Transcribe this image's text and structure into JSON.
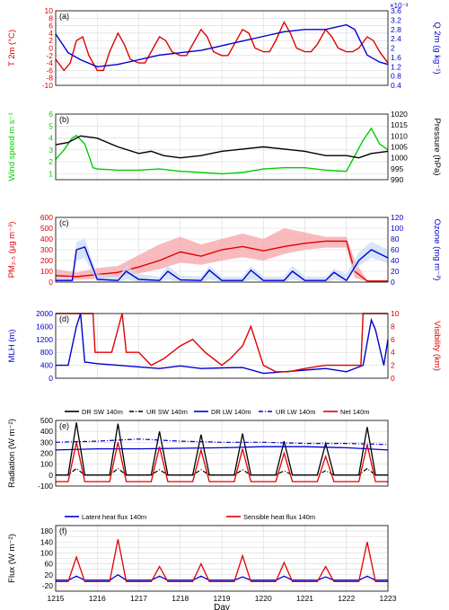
{
  "figure": {
    "xlabel": "Day",
    "x_ticks": [
      1215,
      1216,
      1217,
      1218,
      1219,
      1220,
      1221,
      1222,
      1223
    ],
    "xlim": [
      1215,
      1223
    ]
  },
  "chart_data": [
    {
      "panel": "(a)",
      "type": "line",
      "grid": true,
      "left_axis": {
        "label": "T 2m (°C)",
        "ylim": [
          -10,
          10
        ],
        "ticks": [
          -10,
          -8,
          -6,
          -4,
          -2,
          0,
          2,
          4,
          6,
          8,
          10
        ],
        "color": "#e00000"
      },
      "right_axis": {
        "label": "Q 2m (g kg⁻¹)",
        "ylim": [
          0.0004,
          0.0036
        ],
        "ticks": [
          "0.4",
          "0.8",
          "1.2",
          "1.6",
          "2",
          "2.4",
          "2.8",
          "3.2",
          "3.6"
        ],
        "multiplier": "×10⁻³",
        "color": "#0000d0"
      },
      "series": [
        {
          "axis": "left",
          "color": "#e00000",
          "x": [
            1215.0,
            1215.2,
            1215.35,
            1215.5,
            1215.65,
            1215.8,
            1216.0,
            1216.15,
            1216.3,
            1216.5,
            1216.65,
            1216.8,
            1217.0,
            1217.15,
            1217.3,
            1217.5,
            1217.65,
            1217.8,
            1218.0,
            1218.15,
            1218.3,
            1218.5,
            1218.65,
            1218.8,
            1219.0,
            1219.15,
            1219.3,
            1219.5,
            1219.65,
            1219.8,
            1220.0,
            1220.15,
            1220.3,
            1220.5,
            1220.65,
            1220.8,
            1221.0,
            1221.15,
            1221.3,
            1221.5,
            1221.65,
            1221.8,
            1222.0,
            1222.15,
            1222.3,
            1222.5,
            1222.65,
            1222.8,
            1223.0
          ],
          "y": [
            -3,
            -6,
            -4,
            2,
            3,
            -2,
            -6,
            -6,
            -1,
            4,
            1,
            -3,
            -4,
            -4,
            -1,
            3,
            2,
            -1,
            -2,
            -2,
            1,
            5,
            3,
            -1,
            -2,
            -2,
            1,
            5,
            4,
            0,
            -1,
            -1,
            2,
            7,
            4,
            0,
            -1,
            -1,
            1,
            5,
            3,
            0,
            -1,
            -1,
            0,
            3,
            2,
            -1,
            -4
          ]
        },
        {
          "axis": "right",
          "color": "#0000d0",
          "x": [
            1215.0,
            1215.3,
            1215.6,
            1216.0,
            1216.5,
            1217.0,
            1217.5,
            1218.0,
            1218.5,
            1219.0,
            1219.5,
            1220.0,
            1220.5,
            1221.0,
            1221.5,
            1222.0,
            1222.2,
            1222.5,
            1222.8,
            1223.0
          ],
          "y": [
            0.0026,
            0.0018,
            0.0015,
            0.0012,
            0.0013,
            0.0015,
            0.0017,
            0.0018,
            0.0019,
            0.0021,
            0.0023,
            0.0025,
            0.0027,
            0.0028,
            0.0028,
            0.003,
            0.0028,
            0.0017,
            0.0014,
            0.0013
          ]
        }
      ]
    },
    {
      "panel": "(b)",
      "type": "line",
      "grid": true,
      "left_axis": {
        "label": "Wind speed m s⁻¹",
        "ylim": [
          0.5,
          6
        ],
        "ticks": [
          1,
          2,
          3,
          4,
          5,
          6
        ],
        "color": "#00cc00"
      },
      "right_axis": {
        "label": "Pressure (hPa)",
        "ylim": [
          990,
          1020
        ],
        "ticks": [
          990,
          995,
          1000,
          1005,
          1010,
          1015,
          1020
        ],
        "color": "#000000"
      },
      "series": [
        {
          "axis": "left",
          "color": "#00cc00",
          "x": [
            1215.0,
            1215.2,
            1215.4,
            1215.5,
            1215.7,
            1215.9,
            1216.0,
            1216.5,
            1217.0,
            1217.5,
            1218.0,
            1218.5,
            1219.0,
            1219.5,
            1220.0,
            1220.5,
            1221.0,
            1221.5,
            1222.0,
            1222.2,
            1222.4,
            1222.6,
            1222.8,
            1223.0
          ],
          "y": [
            2.2,
            3.0,
            4.0,
            4.2,
            3.5,
            1.5,
            1.4,
            1.3,
            1.3,
            1.4,
            1.2,
            1.1,
            1.0,
            1.1,
            1.4,
            1.5,
            1.5,
            1.3,
            1.2,
            2.5,
            3.8,
            4.8,
            3.5,
            3.0
          ]
        },
        {
          "axis": "right",
          "color": "#000000",
          "x": [
            1215.0,
            1215.3,
            1215.6,
            1216.0,
            1216.5,
            1217.0,
            1217.3,
            1217.6,
            1218.0,
            1218.5,
            1219.0,
            1219.5,
            1220.0,
            1220.5,
            1221.0,
            1221.5,
            1222.0,
            1222.3,
            1222.6,
            1223.0
          ],
          "y": [
            1006,
            1007,
            1010,
            1009,
            1005,
            1002,
            1003,
            1001,
            1000,
            1001,
            1003,
            1004,
            1005,
            1004,
            1003,
            1001,
            1001,
            1000,
            1002,
            1003
          ]
        }
      ]
    },
    {
      "panel": "(c)",
      "type": "line",
      "grid": true,
      "left_axis": {
        "label": "PM₂.₅ (μg m⁻³)",
        "ylim": [
          0,
          600
        ],
        "ticks": [
          0,
          100,
          200,
          300,
          400,
          500,
          600
        ],
        "color": "#e00000"
      },
      "right_axis": {
        "label": "Ozone (mg m⁻³)",
        "ylim": [
          0,
          120
        ],
        "ticks": [
          0,
          20,
          40,
          60,
          80,
          100,
          120
        ],
        "color": "#0000d0"
      },
      "series": [
        {
          "axis": "left",
          "color": "#e00000",
          "x": [
            1215.0,
            1215.5,
            1216.0,
            1216.5,
            1217.0,
            1217.5,
            1218.0,
            1218.5,
            1219.0,
            1219.5,
            1220.0,
            1220.5,
            1221.0,
            1221.5,
            1222.0,
            1222.2,
            1222.5,
            1223.0
          ],
          "y": [
            60,
            50,
            70,
            90,
            140,
            200,
            280,
            240,
            300,
            330,
            290,
            330,
            360,
            380,
            380,
            100,
            10,
            10
          ],
          "band_lower": [
            20,
            20,
            30,
            50,
            80,
            120,
            180,
            160,
            200,
            230,
            200,
            260,
            300,
            320,
            320,
            40,
            5,
            5
          ],
          "band_upper": [
            120,
            90,
            130,
            150,
            250,
            350,
            420,
            350,
            400,
            450,
            400,
            500,
            460,
            420,
            420,
            200,
            15,
            15
          ]
        },
        {
          "axis": "right",
          "color": "#0000d0",
          "x": [
            1215.0,
            1215.4,
            1215.5,
            1215.7,
            1216.0,
            1216.5,
            1216.7,
            1217.0,
            1217.5,
            1217.7,
            1218.0,
            1218.5,
            1218.7,
            1219.0,
            1219.5,
            1219.7,
            1220.0,
            1220.5,
            1220.7,
            1221.0,
            1221.5,
            1221.7,
            1222.0,
            1222.3,
            1222.6,
            1223.0
          ],
          "y": [
            3,
            3,
            60,
            65,
            5,
            3,
            20,
            5,
            3,
            20,
            4,
            3,
            22,
            3,
            3,
            22,
            3,
            3,
            20,
            3,
            3,
            18,
            3,
            40,
            60,
            45
          ],
          "band_lower": [
            0,
            0,
            40,
            45,
            0,
            0,
            5,
            0,
            0,
            5,
            0,
            0,
            5,
            0,
            0,
            5,
            0,
            0,
            5,
            0,
            0,
            5,
            0,
            30,
            45,
            35
          ],
          "band_upper": [
            10,
            10,
            75,
            80,
            15,
            10,
            30,
            15,
            10,
            30,
            12,
            10,
            30,
            10,
            10,
            30,
            10,
            10,
            30,
            10,
            10,
            25,
            15,
            55,
            75,
            60
          ]
        }
      ]
    },
    {
      "panel": "(d)",
      "type": "line",
      "grid": true,
      "left_axis": {
        "label": "MLH (m)",
        "ylim": [
          0,
          2000
        ],
        "ticks": [
          0,
          400,
          800,
          1200,
          1600,
          2000
        ],
        "color": "#0000d0"
      },
      "right_axis": {
        "label": "Visibility (km)",
        "ylim": [
          0,
          10
        ],
        "ticks": [
          0,
          2,
          4,
          6,
          8,
          10
        ],
        "color": "#e00000"
      },
      "series": [
        {
          "axis": "left",
          "color": "#0000d0",
          "x": [
            1215.0,
            1215.3,
            1215.5,
            1215.6,
            1215.7,
            1216.0,
            1216.5,
            1217.0,
            1217.5,
            1218.0,
            1218.5,
            1219.0,
            1219.5,
            1220.0,
            1220.5,
            1221.0,
            1221.5,
            1222.0,
            1222.4,
            1222.6,
            1222.7,
            1222.9,
            1223.0
          ],
          "y": [
            400,
            400,
            1600,
            2000,
            500,
            450,
            400,
            350,
            300,
            380,
            300,
            320,
            330,
            150,
            200,
            250,
            300,
            200,
            400,
            1800,
            1500,
            400,
            1200
          ]
        },
        {
          "axis": "right",
          "color": "#e00000",
          "x": [
            1215.0,
            1215.9,
            1215.95,
            1216.3,
            1216.35,
            1216.6,
            1216.7,
            1217.0,
            1217.3,
            1217.6,
            1218.0,
            1218.3,
            1218.6,
            1219.0,
            1219.2,
            1219.5,
            1219.7,
            1220.0,
            1220.3,
            1220.6,
            1221.0,
            1221.5,
            1222.0,
            1222.35,
            1222.4,
            1223.0
          ],
          "y": [
            10,
            10,
            4,
            4,
            4,
            10,
            4,
            4,
            2,
            3,
            5,
            6,
            4,
            2,
            3,
            5,
            8,
            2,
            1,
            1,
            1.5,
            2,
            2,
            2,
            10,
            10
          ]
        }
      ]
    },
    {
      "panel": "(e)",
      "type": "line",
      "grid": true,
      "left_axis": {
        "label": "Radiation (W m⁻²)",
        "ylim": [
          -100,
          500
        ],
        "ticks": [
          -100,
          0,
          100,
          200,
          300,
          400,
          500
        ]
      },
      "legend": [
        {
          "name": "DR SW 140m",
          "color": "#000000",
          "dash": "solid"
        },
        {
          "name": "UR SW 140m",
          "color": "#000000",
          "dash": "dashdot"
        },
        {
          "name": "DR LW 140m",
          "color": "#0000d0",
          "dash": "solid"
        },
        {
          "name": "UR LW 140m",
          "color": "#0000d0",
          "dash": "dashdot"
        },
        {
          "name": "Net 140m",
          "color": "#e00000",
          "dash": "solid"
        }
      ],
      "day_peaks": {
        "x": [
          1215.5,
          1216.5,
          1217.5,
          1218.5,
          1219.5,
          1220.5,
          1221.5,
          1222.5
        ],
        "DR_SW_140m": [
          480,
          470,
          400,
          370,
          380,
          310,
          290,
          440
        ],
        "UR_SW_140m": [
          60,
          60,
          50,
          50,
          50,
          40,
          40,
          60
        ],
        "Net_140m": [
          300,
          300,
          260,
          230,
          240,
          200,
          170,
          280
        ]
      },
      "night": {
        "DR_SW_140m": 0,
        "UR_SW_140m": 0,
        "Net_140m": -60
      },
      "DR_LW_140m": {
        "x": [
          1215.0,
          1216.0,
          1217.0,
          1218.0,
          1219.0,
          1220.0,
          1221.0,
          1222.0,
          1223.0
        ],
        "y": [
          230,
          240,
          240,
          245,
          250,
          260,
          260,
          250,
          230
        ]
      },
      "UR_LW_140m": {
        "x": [
          1215.0,
          1216.0,
          1217.0,
          1218.0,
          1219.0,
          1220.0,
          1221.0,
          1222.0,
          1223.0
        ],
        "y": [
          300,
          310,
          330,
          310,
          300,
          300,
          290,
          290,
          280
        ]
      }
    },
    {
      "panel": "(f)",
      "type": "line",
      "grid": true,
      "left_axis": {
        "label": "Flux (W m⁻²)",
        "ylim": [
          -40,
          200
        ],
        "ticks": [
          -40,
          -20,
          0,
          20,
          40,
          60,
          80,
          100,
          120,
          140,
          160,
          180,
          200
        ],
        "tick_labels": [
          "",
          "-20",
          "",
          "20",
          "",
          "60",
          "",
          "100",
          "",
          "140",
          "",
          "180",
          ""
        ]
      },
      "legend": [
        {
          "name": "Latent heat flux 140m",
          "color": "#0000d0"
        },
        {
          "name": "Sensible heat flux 140m",
          "color": "#e00000"
        }
      ],
      "day_peaks": {
        "x": [
          1215.5,
          1216.5,
          1217.5,
          1218.5,
          1219.5,
          1220.5,
          1221.5,
          1222.5
        ],
        "Latent_heat_flux_140m": [
          15,
          20,
          15,
          15,
          12,
          15,
          12,
          15
        ],
        "Sensible_heat_flux_140m": [
          85,
          150,
          50,
          60,
          90,
          65,
          50,
          140
        ]
      },
      "night": {
        "Latent_heat_flux_140m": 0,
        "Sensible_heat_flux_140m": -5
      }
    }
  ]
}
